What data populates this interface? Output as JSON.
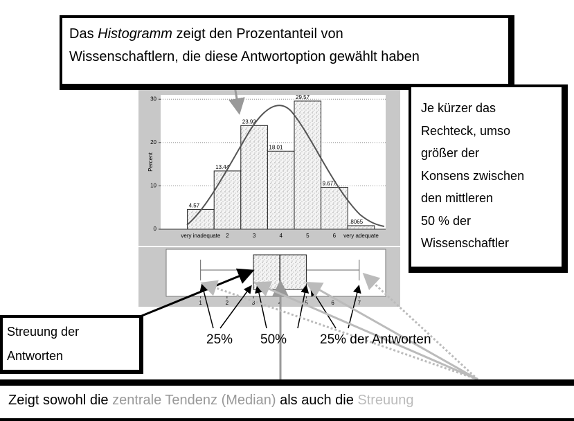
{
  "top_note": {
    "before": "Das ",
    "emphasis": "Histogramm",
    "after": " zeigt den Prozentanteil von",
    "line2": "Wissenschaftlern, die diese Antwortoption gewählt haben"
  },
  "right_note": [
    "Je kürzer das",
    "Rechteck, umso",
    "größer der",
    "Konsens zwischen",
    "den mittleren",
    "50 % der",
    "Wissenschaftler"
  ],
  "left_note": [
    "Streuung der",
    "Antworten"
  ],
  "quartile_labels": [
    "25%",
    "50%",
    "25% der Antworten"
  ],
  "bottom_note": {
    "part1": "Zeigt sowohl die ",
    "part2": "zentrale Tendenz (Median)",
    "part3": " als auch die ",
    "part4": "Streuung"
  },
  "chart_data": [
    {
      "type": "bar",
      "ylabel": "Percent",
      "categories": [
        "very inadequate",
        "2",
        "3",
        "4",
        "5",
        "6",
        "very adequate"
      ],
      "values": [
        4.57,
        13.44,
        23.92,
        18.01,
        29.57,
        9.677,
        0.8065
      ],
      "value_labels": [
        "4.57",
        "13.44",
        "23.92",
        "18.01",
        "29.57",
        "9.677",
        ".8065"
      ],
      "ylim": [
        0,
        31
      ],
      "yticks": [
        0,
        10,
        20,
        30
      ],
      "grid": true
    },
    {
      "type": "box",
      "low": 1,
      "q1": 3,
      "median": 4,
      "q3": 5,
      "high": 7,
      "xlim": [
        -0.3,
        8
      ],
      "xticks": [
        1,
        2,
        3,
        4,
        5,
        6,
        7
      ]
    }
  ]
}
